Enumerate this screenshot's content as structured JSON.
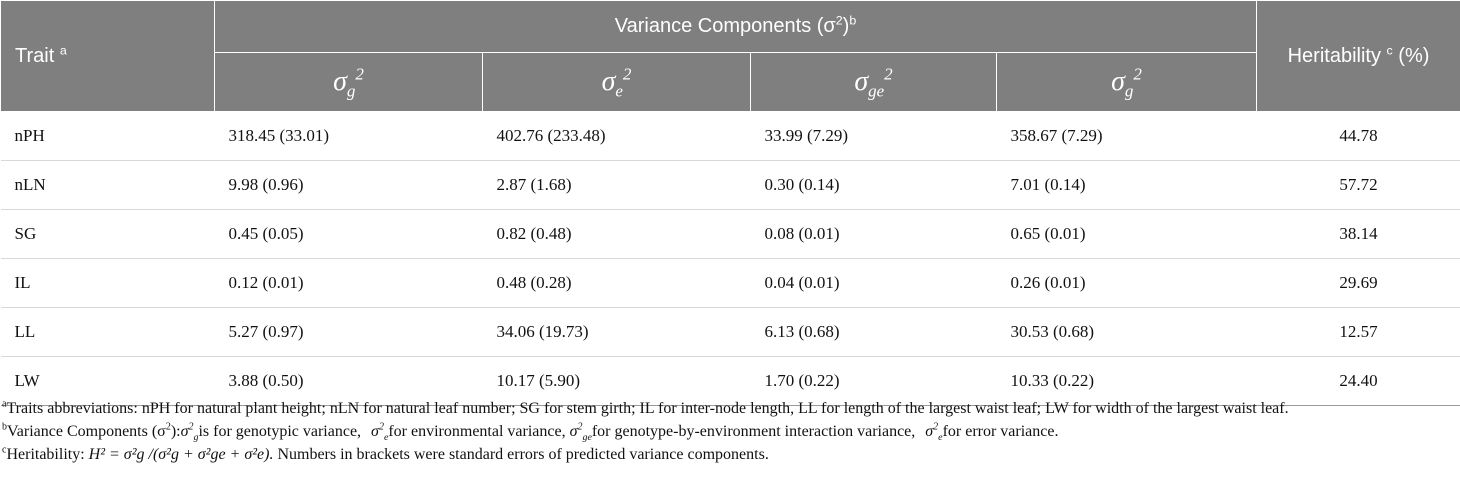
{
  "header": {
    "trait_label": "Trait",
    "trait_sup": "a",
    "variance_label": "Variance Components (σ",
    "variance_sq": "2",
    "variance_close": ")",
    "variance_sup": "b",
    "heritability_label": "Heritability",
    "heritability_sup": "c",
    "heritability_unit": "(%)",
    "subcols": [
      {
        "base": "σ",
        "sub": "g",
        "sup": "2"
      },
      {
        "base": "σ",
        "sub": "e",
        "sup": "2"
      },
      {
        "base": "σ",
        "sub": "ge",
        "sup": "2"
      },
      {
        "base": "σ",
        "sub": "g",
        "sup": "2"
      }
    ]
  },
  "rows": [
    {
      "trait": "nPH",
      "v1": "318.45 (33.01)",
      "v2": "402.76 (233.48)",
      "v3": "33.99 (7.29)",
      "v4": "358.67 (7.29)",
      "h": "44.78"
    },
    {
      "trait": "nLN",
      "v1": "9.98 (0.96)",
      "v2": "2.87 (1.68)",
      "v3": "0.30 (0.14)",
      "v4": "7.01 (0.14)",
      "h": "57.72"
    },
    {
      "trait": "SG",
      "v1": "0.45 (0.05)",
      "v2": "0.82 (0.48)",
      "v3": "0.08 (0.01)",
      "v4": "0.65 (0.01)",
      "h": "38.14"
    },
    {
      "trait": "IL",
      "v1": "0.12 (0.01)",
      "v2": "0.48 (0.28)",
      "v3": "0.04 (0.01)",
      "v4": "0.26 (0.01)",
      "h": "29.69"
    },
    {
      "trait": "LL",
      "v1": "5.27 (0.97)",
      "v2": "34.06 (19.73)",
      "v3": "6.13 (0.68)",
      "v4": "30.53 (0.68)",
      "h": "12.57"
    },
    {
      "trait": "LW",
      "v1": "3.88 (0.50)",
      "v2": "10.17 (5.90)",
      "v3": "1.70 (0.22)",
      "v4": "10.33 (0.22)",
      "h": "24.40"
    }
  ],
  "footnotes": {
    "a": {
      "mark": "a",
      "text": "Traits abbreviations: nPH for natural plant height; nLN for natural leaf number; SG for stem girth; IL for inter-node length, LL for length of the largest waist leaf; LW for width of the largest waist leaf."
    },
    "b": {
      "mark": "b",
      "lead": "Variance Components (σ",
      "lead_sq": "2",
      "lead_close": "):",
      "t1": "is for genotypic variance,",
      "t2": "for environmental variance,",
      "t3": "for genotype-by-environment interaction variance,",
      "t4": "for error variance."
    },
    "c": {
      "mark": "c",
      "lead": "Heritability:",
      "formula": "H² = σ²g /(σ²g +  σ²ge + σ²e).",
      "tail": "Numbers in brackets were standard errors of predicted variance components."
    }
  }
}
